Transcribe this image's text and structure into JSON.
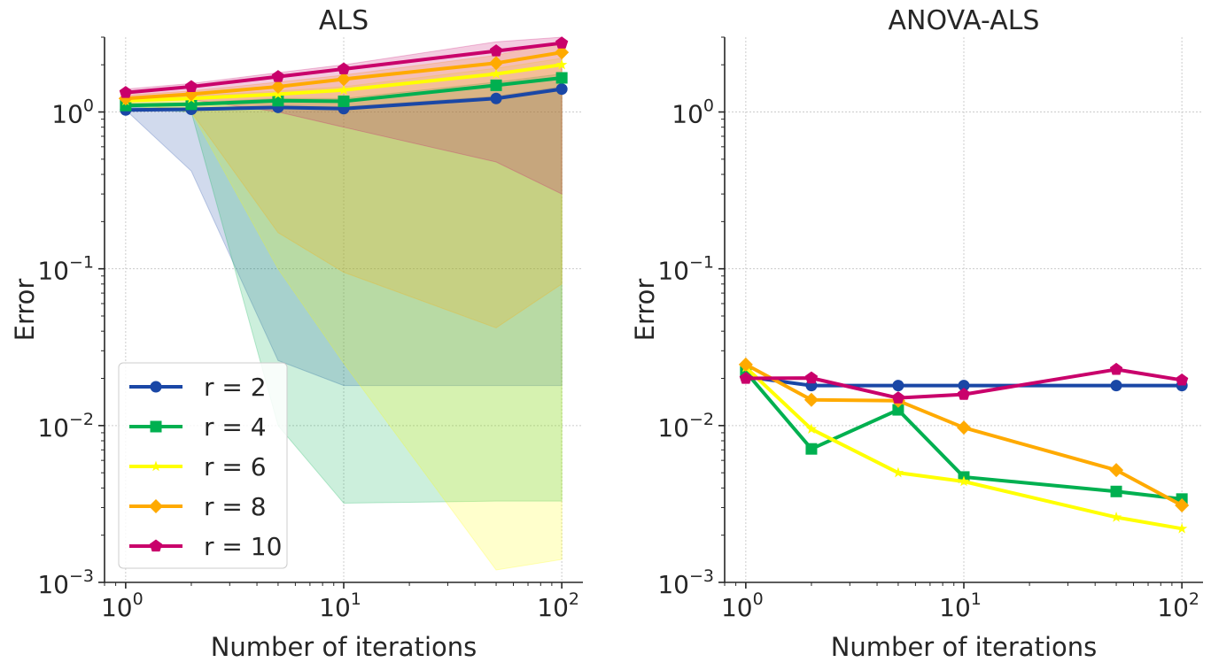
{
  "chart_data": [
    {
      "type": "line",
      "title": "ALS",
      "xlabel": "Number of iterations",
      "ylabel": "Error",
      "xscale": "log",
      "yscale": "log",
      "xlim": [
        0.8,
        125
      ],
      "ylim": [
        0.001,
        3.0
      ],
      "xticks": [
        {
          "base": "10",
          "exp": "0",
          "value": 1
        },
        {
          "base": "10",
          "exp": "1",
          "value": 10
        },
        {
          "base": "10",
          "exp": "2",
          "value": 100
        }
      ],
      "yticks": [
        {
          "base": "10",
          "exp": "0",
          "value": 1
        },
        {
          "base": "10",
          "exp": "−1",
          "value": 0.1
        },
        {
          "base": "10",
          "exp": "−2",
          "value": 0.01
        },
        {
          "base": "10",
          "exp": "−3",
          "value": 0.001
        }
      ],
      "grid": true,
      "legend": "lower-left",
      "x": [
        1,
        2,
        5,
        10,
        50,
        100
      ],
      "series": [
        {
          "name": "r = 2",
          "color": "#1a47a6",
          "marker": "circle",
          "values": [
            1.03,
            1.04,
            1.07,
            1.05,
            1.22,
            1.4
          ],
          "band_low": [
            1.03,
            0.42,
            0.026,
            0.018,
            0.018,
            0.018
          ],
          "band_high": [
            1.07,
            1.06,
            1.09,
            1.08,
            1.26,
            1.45
          ]
        },
        {
          "name": "r = 4",
          "color": "#00b050",
          "marker": "square",
          "values": [
            1.1,
            1.12,
            1.18,
            1.17,
            1.48,
            1.65
          ],
          "band_low": [
            1.05,
            1.0,
            0.01,
            0.0032,
            0.0033,
            0.0033
          ],
          "band_high": [
            1.14,
            1.15,
            1.22,
            1.22,
            1.55,
            1.75
          ]
        },
        {
          "name": "r = 6",
          "color": "#ffff00",
          "marker": "star",
          "values": [
            1.18,
            1.22,
            1.3,
            1.38,
            1.75,
            2.0
          ],
          "band_low": [
            1.1,
            1.0,
            0.1,
            0.025,
            0.0012,
            0.0014
          ],
          "band_high": [
            1.22,
            1.26,
            1.36,
            1.45,
            1.9,
            2.2
          ]
        },
        {
          "name": "r = 8",
          "color": "#ffaa00",
          "marker": "diamond",
          "values": [
            1.22,
            1.3,
            1.45,
            1.62,
            2.05,
            2.4
          ],
          "band_low": [
            1.15,
            1.0,
            0.17,
            0.095,
            0.042,
            0.08
          ],
          "band_high": [
            1.28,
            1.36,
            1.55,
            1.72,
            2.3,
            2.8
          ]
        },
        {
          "name": "r = 10",
          "color": "#c9006b",
          "marker": "pentagon",
          "values": [
            1.33,
            1.45,
            1.68,
            1.88,
            2.45,
            2.75
          ],
          "band_low": [
            1.25,
            1.2,
            1.0,
            0.8,
            0.48,
            0.3
          ],
          "band_high": [
            1.4,
            1.52,
            1.78,
            2.0,
            2.8,
            3.0
          ]
        }
      ]
    },
    {
      "type": "line",
      "title": "ANOVA-ALS",
      "xlabel": "Number of iterations",
      "ylabel": "Error",
      "xscale": "log",
      "yscale": "log",
      "xlim": [
        0.8,
        125
      ],
      "ylim": [
        0.001,
        3.0
      ],
      "xticks": [
        {
          "base": "10",
          "exp": "0",
          "value": 1
        },
        {
          "base": "10",
          "exp": "1",
          "value": 10
        },
        {
          "base": "10",
          "exp": "2",
          "value": 100
        }
      ],
      "yticks": [
        {
          "base": "10",
          "exp": "0",
          "value": 1
        },
        {
          "base": "10",
          "exp": "−1",
          "value": 0.1
        },
        {
          "base": "10",
          "exp": "−2",
          "value": 0.01
        },
        {
          "base": "10",
          "exp": "−3",
          "value": 0.001
        }
      ],
      "grid": true,
      "x": [
        1,
        2,
        5,
        10,
        50,
        100
      ],
      "series": [
        {
          "color": "#1a47a6",
          "marker": "circle",
          "values": [
            0.0205,
            0.018,
            0.018,
            0.018,
            0.018,
            0.018
          ]
        },
        {
          "color": "#00b050",
          "marker": "square",
          "values": [
            0.022,
            0.0071,
            0.0126,
            0.0047,
            0.0038,
            0.0034
          ]
        },
        {
          "color": "#ffff00",
          "marker": "star",
          "values": [
            0.0235,
            0.0095,
            0.005,
            0.0044,
            0.0026,
            0.0022
          ]
        },
        {
          "color": "#ffaa00",
          "marker": "diamond",
          "values": [
            0.0245,
            0.0146,
            0.0144,
            0.0097,
            0.0052,
            0.0031
          ]
        },
        {
          "color": "#c9006b",
          "marker": "pentagon",
          "values": [
            0.02,
            0.0201,
            0.015,
            0.0158,
            0.0228,
            0.0195
          ]
        }
      ]
    }
  ]
}
